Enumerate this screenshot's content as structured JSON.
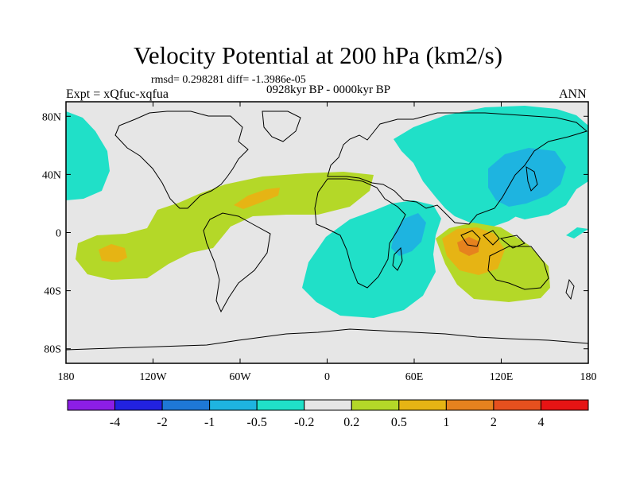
{
  "title": "Velocity Potential at 200 hPa (km2/s)",
  "stats_text": "rmsd= 0.298281 diff= -1.3986e-05",
  "experiment_text": "Expt = xQfuc-xqfua",
  "period_text": "0928kyr BP - 0000kyr BP",
  "season_text": "ANN",
  "axes": {
    "lon_ticks": [
      {
        "lon": -180,
        "label": "180"
      },
      {
        "lon": -120,
        "label": "120W"
      },
      {
        "lon": -60,
        "label": "60W"
      },
      {
        "lon": 0,
        "label": "0"
      },
      {
        "lon": 60,
        "label": "60E"
      },
      {
        "lon": 120,
        "label": "120E"
      },
      {
        "lon": 180,
        "label": "180"
      }
    ],
    "lat_ticks": [
      {
        "lat": 80,
        "label": "80N"
      },
      {
        "lat": 40,
        "label": "40N"
      },
      {
        "lat": 0,
        "label": "0"
      },
      {
        "lat": -40,
        "label": "40S"
      },
      {
        "lat": -80,
        "label": "80S"
      }
    ],
    "lon_range": [
      -180,
      180
    ],
    "lat_range": [
      -90,
      90
    ]
  },
  "colorbar": {
    "colors": [
      "#8c1ee6",
      "#2222e0",
      "#1e78d6",
      "#1eb4e0",
      "#20e0c8",
      "#e6e6e6",
      "#b4d828",
      "#e6b414",
      "#e6821e",
      "#e6501e",
      "#e61414"
    ],
    "labels": [
      "-4",
      "-2",
      "-1",
      "-0.5",
      "-0.2",
      "0.2",
      "0.5",
      "1",
      "2",
      "4"
    ]
  },
  "colors": {
    "background_field": "#e6e6e6",
    "neg_weak": "#20e0c8",
    "neg_mod": "#1eb4e0",
    "pos_weak": "#b4d828",
    "pos_mod": "#e6b414",
    "pos_strong": "#e6821e"
  }
}
